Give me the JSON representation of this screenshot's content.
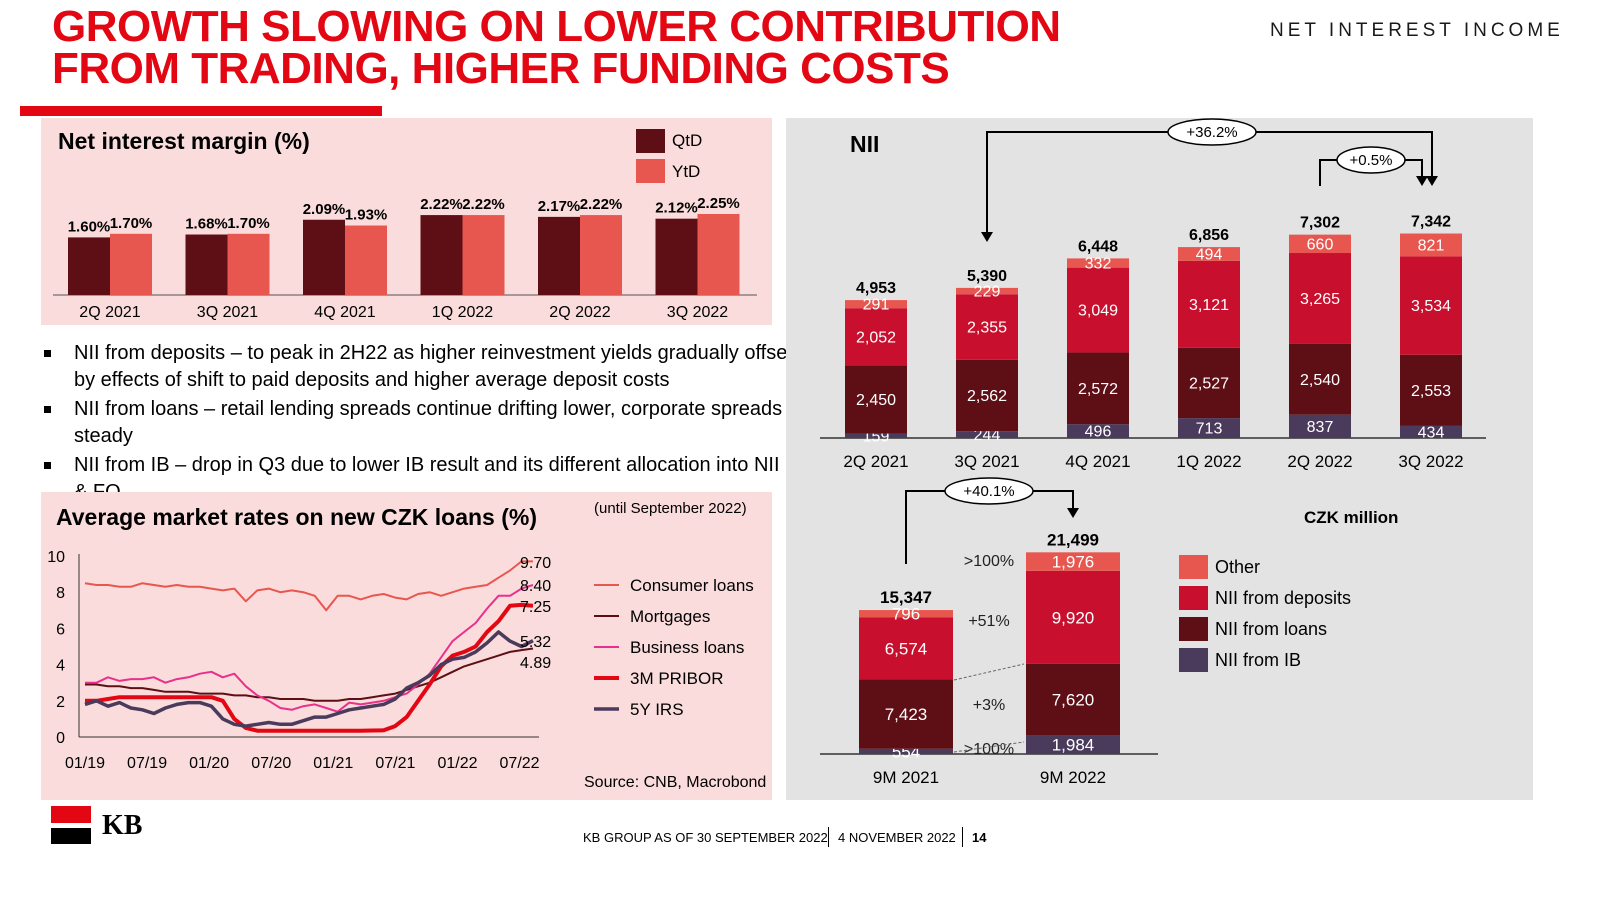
{
  "header": {
    "title_line1": "GROWTH SLOWING ON LOWER CONTRIBUTION",
    "title_line2": "FROM TRADING, HIGHER FUNDING COSTS",
    "section": "NET INTEREST INCOME"
  },
  "colors": {
    "brand_red": "#e30613",
    "qtd": "#5e0f16",
    "ytd": "#e8574f",
    "other": "#e8574f",
    "deposits": "#c8102e",
    "loans": "#5e0f16",
    "ib": "#4a3a5c",
    "pink_panel": "#f9dcdb",
    "grey_panel": "#e3e3e3"
  },
  "bullets": [
    "NII from deposits – to peak in 2H22 as higher reinvestment yields gradually offset by effects of shift to paid deposits and higher average deposit costs",
    "NII from loans – retail lending spreads continue drifting lower, corporate spreads steady",
    "NII from IB – drop in Q3 due to lower IB result and its different allocation into NII & FO"
  ],
  "chart_data": [
    {
      "id": "nim",
      "type": "bar",
      "title": "Net interest margin (%)",
      "categories": [
        "2Q 2021",
        "3Q 2021",
        "4Q 2021",
        "1Q 2022",
        "2Q 2022",
        "3Q 2022"
      ],
      "series": [
        {
          "name": "QtD",
          "values": [
            1.6,
            1.68,
            2.09,
            2.22,
            2.17,
            2.12
          ],
          "labels": [
            "1.60%",
            "1.68%",
            "2.09%",
            "2.22%",
            "2.17%",
            "2.12%"
          ]
        },
        {
          "name": "YtD",
          "values": [
            1.7,
            1.7,
            1.93,
            2.22,
            2.22,
            2.25
          ],
          "labels": [
            "1.70%",
            "1.70%",
            "1.93%",
            "2.22%",
            "2.22%",
            "2.25%"
          ]
        }
      ],
      "legend": [
        "QtD",
        "YtD"
      ]
    },
    {
      "id": "rates",
      "type": "line",
      "title": "Average market rates on new CZK loans (%)",
      "subtitle": "(until September 2022)",
      "source": "Source: CNB, Macrobond",
      "ylim": [
        0,
        10
      ],
      "yticks": [
        "0",
        "2",
        "4",
        "6",
        "8",
        "10"
      ],
      "xticks": [
        "01/19",
        "07/19",
        "01/20",
        "07/20",
        "01/21",
        "07/21",
        "01/22",
        "07/22"
      ],
      "end_labels": [
        "9.70",
        "8.40",
        "7.25",
        "5.32",
        "4.89"
      ],
      "series": [
        {
          "name": "Consumer loans",
          "color": "#e8574f",
          "values": [
            8.5,
            8.4,
            8.4,
            8.3,
            8.3,
            8.5,
            8.4,
            8.3,
            8.4,
            8.3,
            8.3,
            8.2,
            8.1,
            8.2,
            7.5,
            8.1,
            8.2,
            8.0,
            8.1,
            8.0,
            7.8,
            7.0,
            7.8,
            7.8,
            7.6,
            7.8,
            7.9,
            7.7,
            7.6,
            7.9,
            8.0,
            7.8,
            8.0,
            8.2,
            8.3,
            8.4,
            8.8,
            9.2,
            9.7,
            9.7
          ]
        },
        {
          "name": "Mortgages",
          "color": "#5e0f16",
          "values": [
            2.9,
            2.9,
            2.8,
            2.8,
            2.7,
            2.7,
            2.6,
            2.5,
            2.5,
            2.5,
            2.4,
            2.4,
            2.4,
            2.3,
            2.3,
            2.2,
            2.2,
            2.1,
            2.1,
            2.1,
            2.0,
            2.0,
            2.0,
            2.1,
            2.1,
            2.2,
            2.3,
            2.4,
            2.6,
            2.8,
            3.0,
            3.3,
            3.6,
            3.9,
            4.1,
            4.3,
            4.5,
            4.7,
            4.8,
            4.89
          ]
        },
        {
          "name": "Business loans",
          "color": "#e9308c",
          "values": [
            3.0,
            3.0,
            3.3,
            3.1,
            3.2,
            3.2,
            3.3,
            3.0,
            3.2,
            3.3,
            3.5,
            3.6,
            3.3,
            3.5,
            2.8,
            2.3,
            2.0,
            1.6,
            1.5,
            1.7,
            1.8,
            1.6,
            1.4,
            1.9,
            1.8,
            1.9,
            2.0,
            2.2,
            2.4,
            2.9,
            3.5,
            4.4,
            5.3,
            5.8,
            6.3,
            7.1,
            7.8,
            7.8,
            8.2,
            8.4
          ]
        },
        {
          "name": "3M PRIBOR",
          "color": "#e30613",
          "values": [
            2.0,
            2.0,
            2.1,
            2.2,
            2.2,
            2.2,
            2.2,
            2.2,
            2.2,
            2.2,
            2.2,
            2.2,
            2.0,
            1.0,
            0.5,
            0.35,
            0.35,
            0.35,
            0.35,
            0.35,
            0.35,
            0.35,
            0.35,
            0.35,
            0.35,
            0.36,
            0.37,
            0.6,
            1.1,
            2.0,
            2.9,
            3.9,
            4.5,
            4.7,
            5.0,
            5.8,
            6.4,
            7.25,
            7.3,
            7.25
          ]
        },
        {
          "name": "5Y IRS",
          "color": "#4a3a5c",
          "values": [
            1.8,
            2.0,
            1.7,
            1.9,
            1.6,
            1.5,
            1.3,
            1.6,
            1.8,
            1.9,
            1.9,
            1.7,
            1.0,
            0.7,
            0.6,
            0.7,
            0.8,
            0.7,
            0.7,
            0.9,
            1.1,
            1.1,
            1.3,
            1.5,
            1.6,
            1.7,
            1.8,
            2.1,
            2.7,
            3.0,
            3.4,
            4.0,
            4.3,
            4.4,
            4.7,
            5.2,
            5.8,
            5.3,
            5.0,
            5.32
          ]
        }
      ]
    },
    {
      "id": "nii_quarterly",
      "type": "bar",
      "title": "NII",
      "stacked": true,
      "categories": [
        "2Q 2021",
        "3Q 2021",
        "4Q 2021",
        "1Q 2022",
        "2Q 2022",
        "3Q 2022"
      ],
      "series": [
        {
          "name": "NII from IB",
          "values": [
            159,
            244,
            496,
            713,
            837,
            434
          ]
        },
        {
          "name": "NII from loans",
          "values": [
            2450,
            2562,
            2572,
            2527,
            2540,
            2553
          ]
        },
        {
          "name": "NII from deposits",
          "values": [
            2052,
            2355,
            3049,
            3121,
            3265,
            3534
          ]
        },
        {
          "name": "Other",
          "values": [
            291,
            229,
            332,
            494,
            660,
            821
          ]
        }
      ],
      "totals": [
        4953,
        5390,
        6448,
        6856,
        7302,
        7342
      ],
      "total_labels": [
        "4,953",
        "5,390",
        "6,448",
        "6,856",
        "7,302",
        "7,342"
      ],
      "segment_labels": [
        [
          "159",
          "2,450",
          "2,052",
          "291"
        ],
        [
          "244",
          "2,562",
          "2,355",
          "229"
        ],
        [
          "496",
          "2,572",
          "3,049",
          "332"
        ],
        [
          "713",
          "2,527",
          "3,121",
          "494"
        ],
        [
          "837",
          "2,540",
          "3,265",
          "660"
        ],
        [
          "434",
          "2,553",
          "3,534",
          "821"
        ]
      ],
      "annotations": [
        "+36.2%",
        "+0.5%"
      ]
    },
    {
      "id": "nii_9m",
      "type": "bar",
      "stacked": true,
      "categories": [
        "9M 2021",
        "9M 2022"
      ],
      "series": [
        {
          "name": "NII from IB",
          "values": [
            554,
            1984
          ]
        },
        {
          "name": "NII from loans",
          "values": [
            7423,
            7620
          ]
        },
        {
          "name": "NII from deposits",
          "values": [
            6574,
            9920
          ]
        },
        {
          "name": "Other",
          "values": [
            796,
            1976
          ]
        }
      ],
      "totals": [
        15347,
        21499
      ],
      "total_labels": [
        "15,347",
        "21,499"
      ],
      "segment_labels": [
        [
          "554",
          "7,423",
          "6,574",
          "796"
        ],
        [
          "1,984",
          "7,620",
          "9,920",
          "1,976"
        ]
      ],
      "growth_labels": [
        ">100%",
        "+51%",
        "+3%",
        ">100%"
      ],
      "annotation": "+40.1%",
      "unit": "CZK million",
      "legend": [
        "Other",
        "NII from deposits",
        "NII from loans",
        "NII from IB"
      ]
    }
  ],
  "footer": {
    "logo_text": "KB",
    "org": "KB GROUP AS OF 30 SEPTEMBER 2022",
    "date": "4 NOVEMBER 2022",
    "page": "14"
  }
}
